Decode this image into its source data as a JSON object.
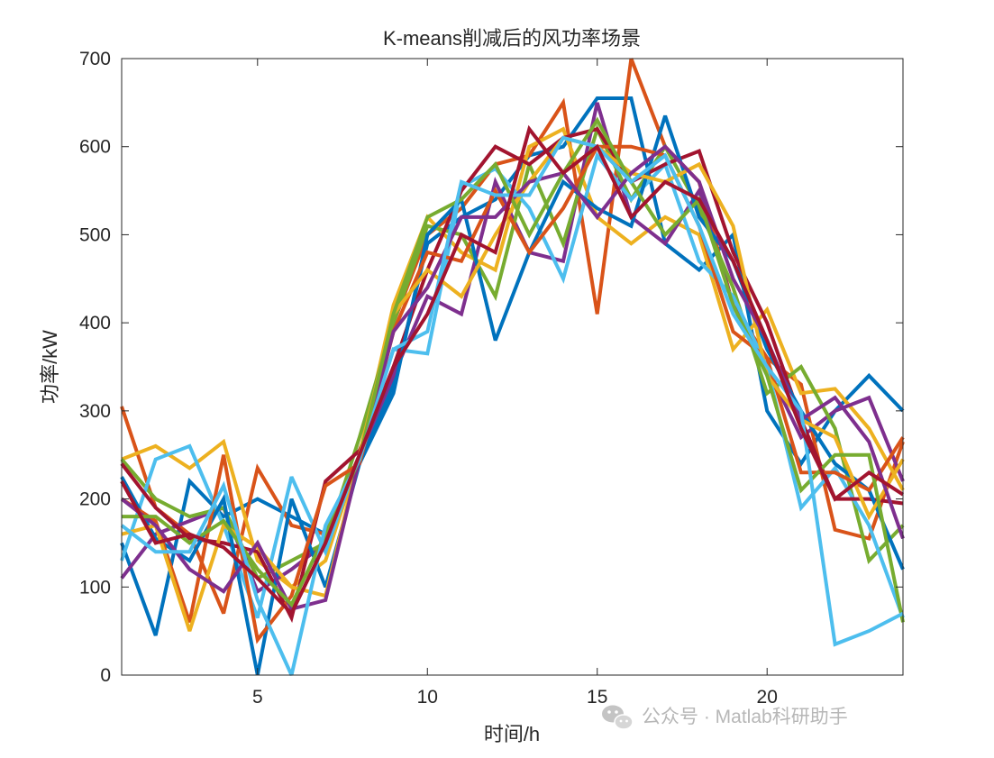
{
  "chart_data": {
    "type": "line",
    "title": "K-means削减后的风功率场景",
    "xlabel": "时间/h",
    "ylabel": "功率/kW",
    "xlim": [
      1,
      24
    ],
    "ylim": [
      0,
      700
    ],
    "xticks": [
      5,
      10,
      15,
      20
    ],
    "yticks": [
      0,
      100,
      200,
      300,
      400,
      500,
      600,
      700
    ],
    "grid": false,
    "legend": "none",
    "x": [
      1,
      2,
      3,
      4,
      5,
      6,
      7,
      8,
      9,
      10,
      11,
      12,
      13,
      14,
      15,
      16,
      17,
      18,
      19,
      20,
      21,
      22,
      23,
      24
    ],
    "series": [
      {
        "color": "#0072BD",
        "values": [
          150,
          45,
          220,
          180,
          200,
          180,
          160,
          240,
          330,
          490,
          520,
          540,
          590,
          600,
          655,
          655,
          490,
          460,
          500,
          300,
          240,
          300,
          340,
          300
        ]
      },
      {
        "color": "#D95319",
        "values": [
          305,
          190,
          160,
          70,
          235,
          170,
          160,
          250,
          400,
          500,
          530,
          580,
          590,
          650,
          410,
          700,
          600,
          560,
          420,
          360,
          330,
          165,
          155,
          265
        ]
      },
      {
        "color": "#EDB120",
        "values": [
          245,
          260,
          235,
          265,
          130,
          100,
          130,
          250,
          420,
          520,
          480,
          460,
          600,
          620,
          520,
          490,
          520,
          500,
          370,
          415,
          320,
          325,
          280,
          210
        ]
      },
      {
        "color": "#7E2F8E",
        "values": [
          110,
          160,
          175,
          190,
          95,
          120,
          150,
          250,
          340,
          430,
          410,
          560,
          480,
          470,
          650,
          520,
          490,
          550,
          420,
          350,
          270,
          300,
          315,
          220
        ]
      },
      {
        "color": "#77AC30",
        "values": [
          245,
          200,
          180,
          190,
          110,
          130,
          150,
          270,
          400,
          510,
          500,
          430,
          580,
          490,
          620,
          540,
          600,
          530,
          440,
          320,
          350,
          280,
          130,
          170
        ]
      },
      {
        "color": "#4DBEEE",
        "values": [
          130,
          245,
          260,
          170,
          65,
          225,
          140,
          250,
          370,
          365,
          555,
          575,
          530,
          450,
          590,
          540,
          580,
          470,
          430,
          350,
          190,
          235,
          170,
          65
        ]
      },
      {
        "color": "#A2142F",
        "values": [
          240,
          190,
          155,
          150,
          140,
          65,
          220,
          255,
          350,
          460,
          550,
          600,
          580,
          610,
          620,
          560,
          580,
          595,
          480,
          400,
          290,
          200,
          200,
          195
        ]
      },
      {
        "color": "#0072BD",
        "values": [
          225,
          155,
          130,
          200,
          0,
          200,
          100,
          240,
          320,
          500,
          540,
          380,
          480,
          560,
          530,
          510,
          635,
          520,
          470,
          370,
          300,
          240,
          210,
          120
        ]
      },
      {
        "color": "#D95319",
        "values": [
          200,
          175,
          60,
          250,
          40,
          90,
          215,
          240,
          390,
          480,
          470,
          550,
          480,
          530,
          600,
          600,
          590,
          510,
          390,
          360,
          230,
          230,
          210,
          270
        ]
      },
      {
        "color": "#EDB120",
        "values": [
          160,
          170,
          50,
          170,
          145,
          100,
          90,
          250,
          410,
          460,
          430,
          500,
          560,
          610,
          600,
          570,
          560,
          580,
          510,
          340,
          290,
          270,
          180,
          245
        ]
      },
      {
        "color": "#7E2F8E",
        "values": [
          200,
          170,
          120,
          95,
          150,
          75,
          85,
          245,
          390,
          440,
          520,
          520,
          560,
          570,
          520,
          570,
          600,
          560,
          450,
          380,
          290,
          315,
          265,
          155
        ]
      },
      {
        "color": "#77AC30",
        "values": [
          180,
          180,
          150,
          175,
          120,
          80,
          160,
          245,
          410,
          520,
          540,
          580,
          500,
          570,
          630,
          560,
          500,
          540,
          420,
          340,
          210,
          250,
          250,
          60
        ]
      },
      {
        "color": "#4DBEEE",
        "values": [
          170,
          140,
          140,
          215,
          85,
          0,
          170,
          245,
          370,
          390,
          560,
          545,
          545,
          610,
          600,
          560,
          590,
          510,
          410,
          350,
          300,
          35,
          50,
          70
        ]
      },
      {
        "color": "#A2142F",
        "values": [
          220,
          150,
          160,
          145,
          110,
          70,
          150,
          250,
          350,
          410,
          500,
          480,
          620,
          570,
          600,
          520,
          560,
          540,
          470,
          380,
          280,
          200,
          230,
          205
        ]
      }
    ]
  },
  "watermark": {
    "text": "公众号 · Matlab科研助手",
    "icon": "wechat-icon"
  }
}
